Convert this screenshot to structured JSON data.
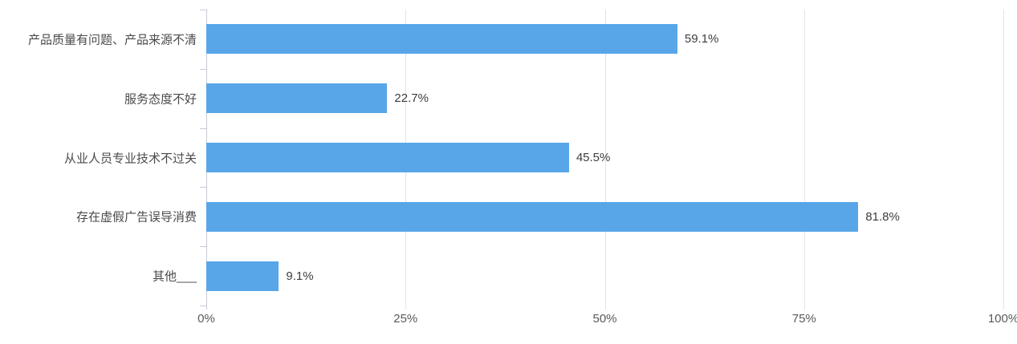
{
  "chart_data": {
    "type": "bar",
    "orientation": "horizontal",
    "title": "",
    "xlabel": "",
    "ylabel": "",
    "categories": [
      "产品质量有问题、产品来源不清",
      "服务态度不好",
      "从业人员专业技术不过关",
      "存在虚假广告误导消费",
      "其他___"
    ],
    "values": [
      59.1,
      22.7,
      45.5,
      81.8,
      9.1
    ],
    "value_labels": [
      "59.1%",
      "22.7%",
      "45.5%",
      "81.8%",
      "9.1%"
    ],
    "x_tick_values": [
      0,
      25,
      50,
      75,
      100
    ],
    "x_tick_labels": [
      "0%",
      "25%",
      "50%",
      "75%",
      "100%"
    ],
    "xlim": [
      0,
      100
    ],
    "grid": true,
    "legend": "none",
    "colors": {
      "bar": "#58A6E8",
      "gridline": "#E1E4E8",
      "axis": "#C7CDD5",
      "category_label": "#4A4A4A",
      "value_label": "#3D3D3D",
      "x_tick_label": "#595959",
      "background": "#FFFFFF"
    }
  }
}
